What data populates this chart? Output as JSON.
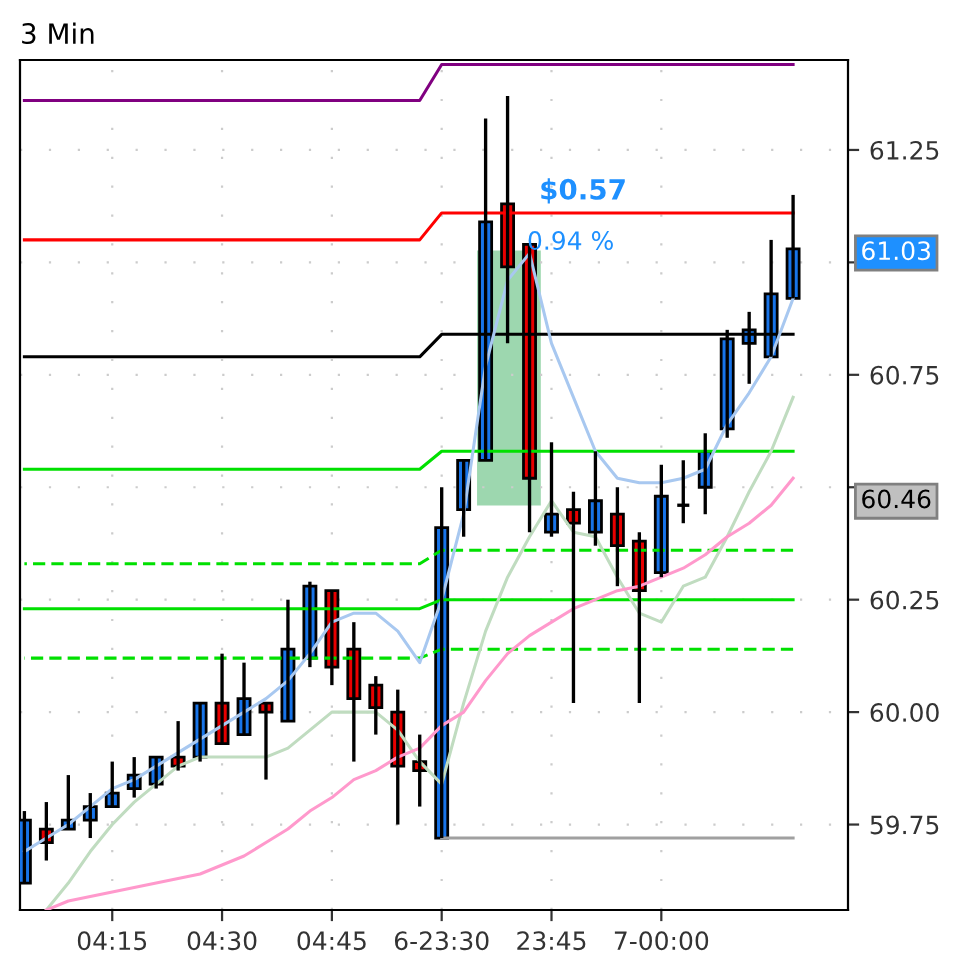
{
  "chart_data": {
    "type": "candlestick",
    "title": "3 Min",
    "categories": [
      null,
      null,
      null,
      null,
      "04:15",
      null,
      null,
      null,
      null,
      "04:30",
      null,
      null,
      null,
      null,
      "04:45",
      null,
      null,
      null,
      null,
      "6-23:30",
      null,
      null,
      null,
      null,
      "23:45",
      null,
      null,
      null,
      null,
      "7-00:00",
      null,
      null,
      null,
      null,
      null,
      null
    ],
    "ohlc": [
      [
        59.62,
        59.78,
        59.62,
        59.76
      ],
      [
        59.74,
        59.8,
        59.67,
        59.71
      ],
      [
        59.74,
        59.86,
        59.74,
        59.76
      ],
      [
        59.76,
        59.82,
        59.72,
        59.79
      ],
      [
        59.79,
        59.89,
        59.79,
        59.82
      ],
      [
        59.83,
        59.9,
        59.81,
        59.86
      ],
      [
        59.84,
        59.9,
        59.83,
        59.9
      ],
      [
        59.9,
        59.98,
        59.87,
        59.88
      ],
      [
        59.9,
        60.02,
        59.89,
        60.02
      ],
      [
        60.02,
        60.13,
        59.93,
        59.93
      ],
      [
        59.95,
        60.11,
        59.95,
        60.03
      ],
      [
        60.02,
        60.02,
        59.85,
        60.0
      ],
      [
        59.98,
        60.25,
        59.98,
        60.14
      ],
      [
        60.12,
        60.29,
        60.1,
        60.28
      ],
      [
        60.27,
        60.27,
        60.06,
        60.1
      ],
      [
        60.14,
        60.2,
        59.89,
        60.03
      ],
      [
        60.06,
        60.08,
        59.95,
        60.01
      ],
      [
        60.0,
        60.05,
        59.75,
        59.88
      ],
      [
        59.89,
        59.95,
        59.79,
        59.87
      ],
      [
        59.72,
        60.5,
        59.72,
        60.41
      ],
      [
        60.45,
        60.56,
        60.39,
        60.56
      ],
      [
        60.56,
        61.32,
        60.56,
        61.09
      ],
      [
        61.13,
        61.37,
        60.82,
        60.99
      ],
      [
        61.04,
        61.04,
        60.4,
        60.52
      ],
      [
        60.4,
        60.6,
        60.39,
        60.44
      ],
      [
        60.45,
        60.49,
        60.02,
        60.42
      ],
      [
        60.4,
        60.58,
        60.37,
        60.47
      ],
      [
        60.44,
        60.5,
        60.28,
        60.37
      ],
      [
        60.38,
        60.4,
        60.02,
        60.27
      ],
      [
        60.31,
        60.55,
        60.3,
        60.48
      ],
      [
        60.46,
        60.56,
        60.42,
        60.46
      ],
      [
        60.5,
        60.62,
        60.44,
        60.58
      ],
      [
        60.63,
        60.85,
        60.61,
        60.83
      ],
      [
        60.82,
        60.89,
        60.73,
        60.85
      ],
      [
        60.79,
        61.05,
        60.79,
        60.93
      ],
      [
        60.92,
        61.15,
        60.92,
        61.03
      ]
    ],
    "colors": [
      "#1874e8",
      "#e80000",
      "#1874e8",
      "#1874e8",
      "#1874e8",
      "#1874e8",
      "#1874e8",
      "#e80000",
      "#1874e8",
      "#e80000",
      "#1874e8",
      "#e80000",
      "#1874e8",
      "#1874e8",
      "#e80000",
      "#e80000",
      "#e80000",
      "#e80000",
      "#e80000",
      "#1874e8",
      "#1874e8",
      "#1874e8",
      "#e80000",
      "#e80000",
      "#1874e8",
      "#e80000",
      "#1874e8",
      "#e80000",
      "#e80000",
      "#1874e8",
      "#000000",
      "#1874e8",
      "#1874e8",
      "#1874e8",
      "#1874e8",
      "#1874e8"
    ],
    "series": [
      {
        "type": "line",
        "color": "#800080",
        "line_style": "solid",
        "values": [
          61.36,
          61.36,
          61.36,
          61.36,
          61.36,
          61.36,
          61.36,
          61.36,
          61.36,
          61.36,
          61.36,
          61.36,
          61.36,
          61.36,
          61.36,
          61.36,
          61.36,
          61.36,
          61.36,
          61.44,
          61.44,
          61.44,
          61.44,
          61.44,
          61.44,
          61.44,
          61.44,
          61.44,
          61.44,
          61.44,
          61.44,
          61.44,
          61.44,
          61.44,
          61.44,
          61.44
        ]
      },
      {
        "type": "line",
        "color": "#ff0000",
        "line_style": "solid",
        "values": [
          61.05,
          61.05,
          61.05,
          61.05,
          61.05,
          61.05,
          61.05,
          61.05,
          61.05,
          61.05,
          61.05,
          61.05,
          61.05,
          61.05,
          61.05,
          61.05,
          61.05,
          61.05,
          61.05,
          61.11,
          61.11,
          61.11,
          61.11,
          61.11,
          61.11,
          61.11,
          61.11,
          61.11,
          61.11,
          61.11,
          61.11,
          61.11,
          61.11,
          61.11,
          61.11,
          61.11
        ]
      },
      {
        "type": "line",
        "color": "#000000",
        "line_style": "solid",
        "values": [
          60.79,
          60.79,
          60.79,
          60.79,
          60.79,
          60.79,
          60.79,
          60.79,
          60.79,
          60.79,
          60.79,
          60.79,
          60.79,
          60.79,
          60.79,
          60.79,
          60.79,
          60.79,
          60.79,
          60.84,
          60.84,
          60.84,
          60.84,
          60.84,
          60.84,
          60.84,
          60.84,
          60.84,
          60.84,
          60.84,
          60.84,
          60.84,
          60.84,
          60.84,
          60.84,
          60.84
        ]
      },
      {
        "type": "line",
        "color": "#00e000",
        "line_style": "solid",
        "values": [
          60.54,
          60.54,
          60.54,
          60.54,
          60.54,
          60.54,
          60.54,
          60.54,
          60.54,
          60.54,
          60.54,
          60.54,
          60.54,
          60.54,
          60.54,
          60.54,
          60.54,
          60.54,
          60.54,
          60.58,
          60.58,
          60.58,
          60.58,
          60.58,
          60.58,
          60.58,
          60.58,
          60.58,
          60.58,
          60.58,
          60.58,
          60.58,
          60.58,
          60.58,
          60.58,
          60.58
        ]
      },
      {
        "type": "line",
        "color": "#00e000",
        "line_style": "dashed",
        "values": [
          60.33,
          60.33,
          60.33,
          60.33,
          60.33,
          60.33,
          60.33,
          60.33,
          60.33,
          60.33,
          60.33,
          60.33,
          60.33,
          60.33,
          60.33,
          60.33,
          60.33,
          60.33,
          60.33,
          60.36,
          60.36,
          60.36,
          60.36,
          60.36,
          60.36,
          60.36,
          60.36,
          60.36,
          60.36,
          60.36,
          60.36,
          60.36,
          60.36,
          60.36,
          60.36,
          60.36
        ]
      },
      {
        "type": "line",
        "color": "#00e000",
        "line_style": "solid",
        "values": [
          60.23,
          60.23,
          60.23,
          60.23,
          60.23,
          60.23,
          60.23,
          60.23,
          60.23,
          60.23,
          60.23,
          60.23,
          60.23,
          60.23,
          60.23,
          60.23,
          60.23,
          60.23,
          60.23,
          60.25,
          60.25,
          60.25,
          60.25,
          60.25,
          60.25,
          60.25,
          60.25,
          60.25,
          60.25,
          60.25,
          60.25,
          60.25,
          60.25,
          60.25,
          60.25,
          60.25
        ]
      },
      {
        "type": "line",
        "color": "#00e000",
        "line_style": "dashed",
        "values": [
          60.12,
          60.12,
          60.12,
          60.12,
          60.12,
          60.12,
          60.12,
          60.12,
          60.12,
          60.12,
          60.12,
          60.12,
          60.12,
          60.12,
          60.12,
          60.12,
          60.12,
          60.12,
          60.12,
          60.14,
          60.14,
          60.14,
          60.14,
          60.14,
          60.14,
          60.14,
          60.14,
          60.14,
          60.14,
          60.14,
          60.14,
          60.14,
          60.14,
          60.14,
          60.14,
          60.14
        ]
      },
      {
        "type": "line",
        "color": "#a0a0a0",
        "line_style": "solid",
        "values": [
          null,
          null,
          null,
          null,
          null,
          null,
          null,
          null,
          null,
          null,
          null,
          null,
          null,
          null,
          null,
          null,
          null,
          null,
          null,
          59.72,
          59.72,
          59.72,
          59.72,
          59.72,
          59.72,
          59.72,
          59.72,
          59.72,
          59.72,
          59.72,
          59.72,
          59.72,
          59.72,
          59.72,
          59.72,
          59.72
        ]
      },
      {
        "type": "line",
        "color": "#a8c8f0",
        "line_style": "solid",
        "values": [
          59.69,
          59.72,
          59.75,
          59.79,
          59.83,
          59.85,
          59.88,
          59.91,
          59.94,
          59.97,
          60.0,
          60.03,
          60.07,
          60.13,
          60.2,
          60.22,
          60.22,
          60.18,
          60.11,
          60.25,
          60.44,
          60.77,
          60.96,
          61.02,
          60.82,
          60.7,
          60.58,
          60.52,
          60.51,
          60.51,
          60.52,
          60.54,
          60.64,
          60.71,
          60.79,
          60.92
        ]
      },
      {
        "type": "line",
        "color": "#c0dcc0",
        "line_style": "solid",
        "values": [
          null,
          59.56,
          59.62,
          59.69,
          59.75,
          59.8,
          59.84,
          59.88,
          59.9,
          59.9,
          59.9,
          59.9,
          59.92,
          59.96,
          60.0,
          60.0,
          60.0,
          59.96,
          59.89,
          59.84,
          60.02,
          60.18,
          60.3,
          60.39,
          60.47,
          60.4,
          60.39,
          60.3,
          60.22,
          60.2,
          60.28,
          60.3,
          60.39,
          60.49,
          60.58,
          60.7
        ]
      },
      {
        "type": "line",
        "color": "#ff99cc",
        "line_style": "solid",
        "values": [
          null,
          59.56,
          59.58,
          59.59,
          59.6,
          59.61,
          59.62,
          59.63,
          59.64,
          59.66,
          59.68,
          59.71,
          59.74,
          59.78,
          59.81,
          59.85,
          59.87,
          59.9,
          59.92,
          59.97,
          60.0,
          60.07,
          60.13,
          60.17,
          60.2,
          60.23,
          60.25,
          60.27,
          60.28,
          60.3,
          60.32,
          60.35,
          60.39,
          60.42,
          60.46,
          60.52
        ]
      }
    ],
    "ylim": [
      59.56,
      61.45
    ],
    "yticks": [
      59.75,
      {
        "value": 60.0,
        "label": "60.00"
      },
      60.25,
      {
        "value": 60.5,
        "label": null
      },
      60.75,
      {
        "value": 61.0,
        "label": null
      },
      61.25
    ],
    "grid": true,
    "legend": false,
    "annotations": [
      "$0.57",
      "0.94 %",
      "61.03",
      "60.46"
    ]
  }
}
